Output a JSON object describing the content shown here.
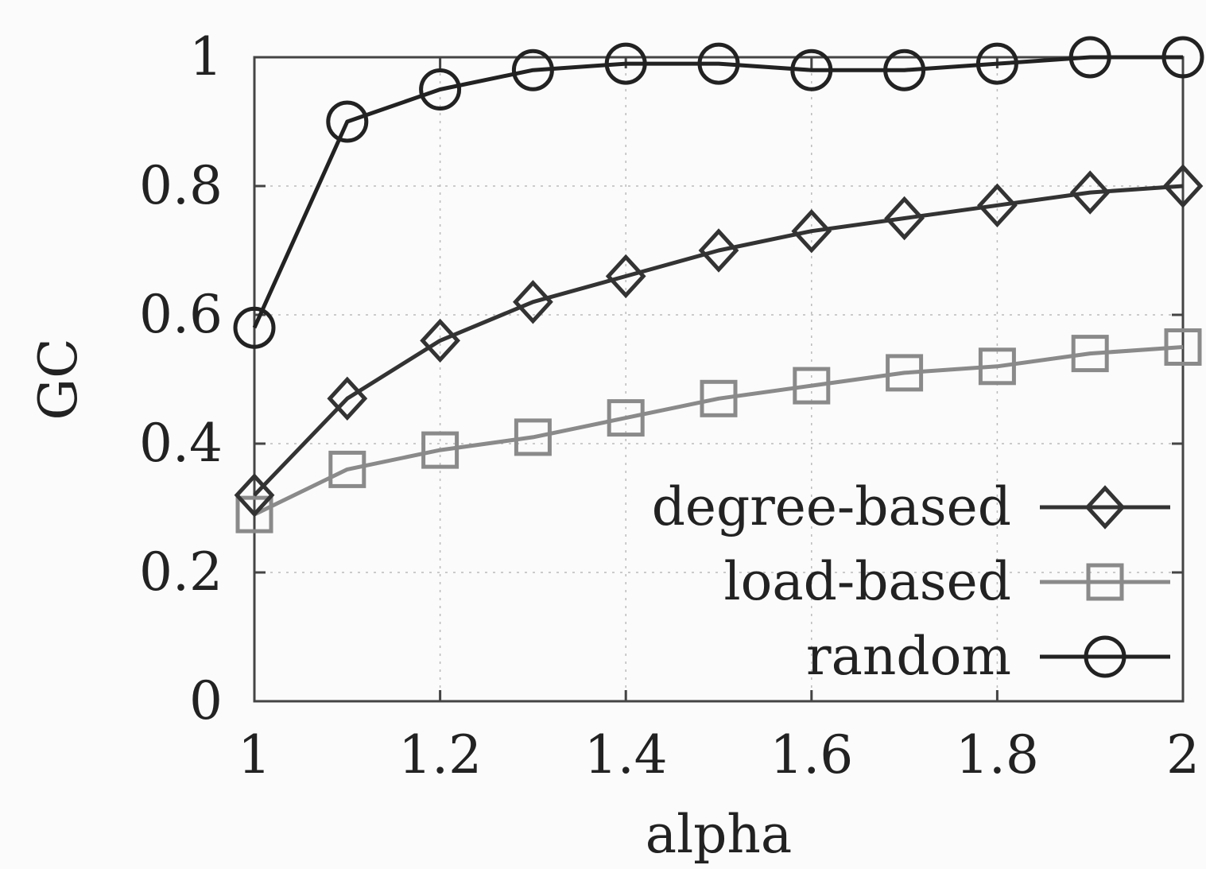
{
  "chart_data": {
    "type": "line",
    "xlabel": "alpha",
    "ylabel": "GC",
    "xlim": [
      1,
      2
    ],
    "ylim": [
      0,
      1
    ],
    "xticks": [
      "1",
      "1.2",
      "1.4",
      "1.6",
      "1.8",
      "2"
    ],
    "yticks": [
      "0",
      "0.2",
      "0.4",
      "0.6",
      "0.8",
      "1"
    ],
    "grid": true,
    "legend_position": "bottom-right",
    "x": [
      1.0,
      1.1,
      1.2,
      1.3,
      1.4,
      1.5,
      1.6,
      1.7,
      1.8,
      1.9,
      2.0
    ],
    "series": [
      {
        "name": "degree-based",
        "marker": "diamond",
        "color": "#333333",
        "values": [
          0.32,
          0.47,
          0.56,
          0.62,
          0.66,
          0.7,
          0.73,
          0.75,
          0.77,
          0.79,
          0.8
        ]
      },
      {
        "name": "load-based",
        "marker": "square",
        "color": "#8a8a8a",
        "values": [
          0.29,
          0.36,
          0.39,
          0.41,
          0.44,
          0.47,
          0.49,
          0.51,
          0.52,
          0.54,
          0.55
        ]
      },
      {
        "name": "random",
        "marker": "circle",
        "color": "#222222",
        "values": [
          0.58,
          0.9,
          0.95,
          0.98,
          0.99,
          0.99,
          0.98,
          0.98,
          0.99,
          1.0,
          1.0
        ]
      }
    ]
  }
}
